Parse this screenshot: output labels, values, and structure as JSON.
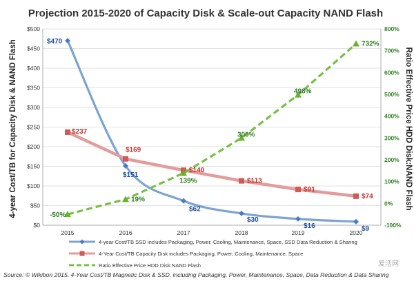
{
  "chart_data": {
    "type": "line",
    "title": "Projection 2015-2020 of Capacity Disk & Scale-out Capacity NAND Flash",
    "x": [
      "2015",
      "2016",
      "2017",
      "2018",
      "2019",
      "2020"
    ],
    "ylabel": "4-year Cost/TB for Capacity Disk & NAND Flash",
    "ylabel_right": "Ratio Effective Price HDD Disk:NAND Flash",
    "ylim": [
      0,
      500
    ],
    "ylim_right": [
      -100,
      800
    ],
    "yticks": [
      "$0",
      "$50",
      "$100",
      "$150",
      "$200",
      "$250",
      "$300",
      "$350",
      "$400",
      "$450",
      "$500"
    ],
    "yticks_right": [
      "-100%",
      "0%",
      "100%",
      "200%",
      "300%",
      "400%",
      "500%",
      "600%",
      "700%",
      "800%"
    ],
    "grid": true,
    "legend_position": "bottom",
    "series": [
      {
        "name": "4-year Cost/TB SSD includes Packaging, Power, Cooling, Maintenance, Space, SSD Data Reduction & Sharing",
        "axis": "left",
        "color": "#7ba3d4",
        "label_color": "#1f4e9c",
        "values": [
          470,
          151,
          62,
          30,
          16,
          9
        ],
        "labels": [
          "$470",
          "$151",
          "$62",
          "$30",
          "$16",
          "$9"
        ]
      },
      {
        "name": "4-Year Cost/TB Capacity Disk includes Packaging, Power, Cooling, Maintenance, Space",
        "axis": "left",
        "color": "#e39c9c",
        "label_color": "#c0322a",
        "values": [
          237,
          169,
          140,
          113,
          91,
          74
        ],
        "labels": [
          "$237",
          "$169",
          "$140",
          "$113",
          "$91",
          "$74"
        ]
      },
      {
        "name": "Ratio Effective Price HDD Disk:NAND Flash",
        "axis": "right",
        "color": "#76c043",
        "label_color": "#2e7d1f",
        "values": [
          -50,
          19,
          139,
          300,
          498,
          732
        ],
        "labels": [
          "-50%",
          "19%",
          "139%",
          "300%",
          "498%",
          "732%"
        ]
      }
    ]
  },
  "source": "Source: © Wikibon 2015. 4-Year Cost/TB Magnetic Disk & SSD, including Packaging, Power, Maintenance, Space, Data Reduction & Data Sharing",
  "watermark": "爱活网"
}
